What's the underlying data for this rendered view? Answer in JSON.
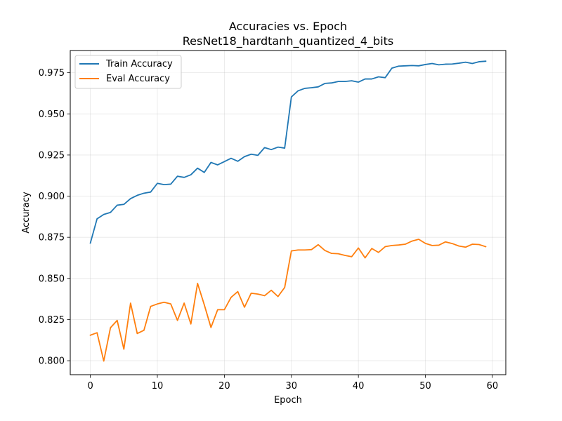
{
  "chart_data": {
    "type": "line",
    "title": "Accuracies vs. Epoch",
    "subtitle": "ResNet18_hardtanh_quantized_4_bits",
    "xlabel": "Epoch",
    "ylabel": "Accuracy",
    "xlim": [
      -3,
      62
    ],
    "ylim": [
      0.7915,
      0.9885
    ],
    "xticks": [
      0,
      10,
      20,
      30,
      40,
      50,
      60
    ],
    "yticks": [
      0.8,
      0.825,
      0.85,
      0.875,
      0.9,
      0.925,
      0.95,
      0.975
    ],
    "grid": true,
    "legend_position": "upper-left",
    "x": [
      0,
      1,
      2,
      3,
      4,
      5,
      6,
      7,
      8,
      9,
      10,
      11,
      12,
      13,
      14,
      15,
      16,
      17,
      18,
      19,
      20,
      21,
      22,
      23,
      24,
      25,
      26,
      27,
      28,
      29,
      30,
      31,
      32,
      33,
      34,
      35,
      36,
      37,
      38,
      39,
      40,
      41,
      42,
      43,
      44,
      45,
      46,
      47,
      48,
      49,
      50,
      51,
      52,
      53,
      54,
      55,
      56,
      57,
      58,
      59
    ],
    "series": [
      {
        "name": "Train Accuracy",
        "color": "#1f77b4",
        "values": [
          0.8715,
          0.8862,
          0.8889,
          0.8901,
          0.8945,
          0.895,
          0.8985,
          0.9005,
          0.9018,
          0.9025,
          0.9078,
          0.907,
          0.9073,
          0.9121,
          0.9114,
          0.913,
          0.917,
          0.9144,
          0.9205,
          0.919,
          0.921,
          0.923,
          0.9212,
          0.924,
          0.9255,
          0.9248,
          0.9295,
          0.9283,
          0.9298,
          0.9292,
          0.9603,
          0.964,
          0.9655,
          0.9659,
          0.9664,
          0.9685,
          0.9688,
          0.9697,
          0.9697,
          0.9701,
          0.9693,
          0.9712,
          0.9712,
          0.9725,
          0.972,
          0.9778,
          0.979,
          0.9792,
          0.9794,
          0.9792,
          0.98,
          0.9806,
          0.9798,
          0.9802,
          0.9803,
          0.9808,
          0.9814,
          0.9806,
          0.9817,
          0.982
        ]
      },
      {
        "name": "Eval Accuracy",
        "color": "#ff7f0e",
        "values": [
          0.8155,
          0.817,
          0.7998,
          0.82,
          0.8245,
          0.807,
          0.835,
          0.8165,
          0.8185,
          0.833,
          0.8345,
          0.8355,
          0.8345,
          0.8245,
          0.835,
          0.8223,
          0.847,
          0.834,
          0.8202,
          0.831,
          0.831,
          0.8385,
          0.842,
          0.8325,
          0.841,
          0.8405,
          0.8395,
          0.8428,
          0.839,
          0.8445,
          0.8667,
          0.8673,
          0.8673,
          0.8675,
          0.8705,
          0.867,
          0.8652,
          0.865,
          0.864,
          0.8632,
          0.8685,
          0.8625,
          0.8682,
          0.8658,
          0.8693,
          0.87,
          0.8703,
          0.8708,
          0.8727,
          0.8738,
          0.8713,
          0.87,
          0.8702,
          0.8722,
          0.8712,
          0.8697,
          0.869,
          0.8708,
          0.8706,
          0.8693
        ]
      }
    ]
  }
}
